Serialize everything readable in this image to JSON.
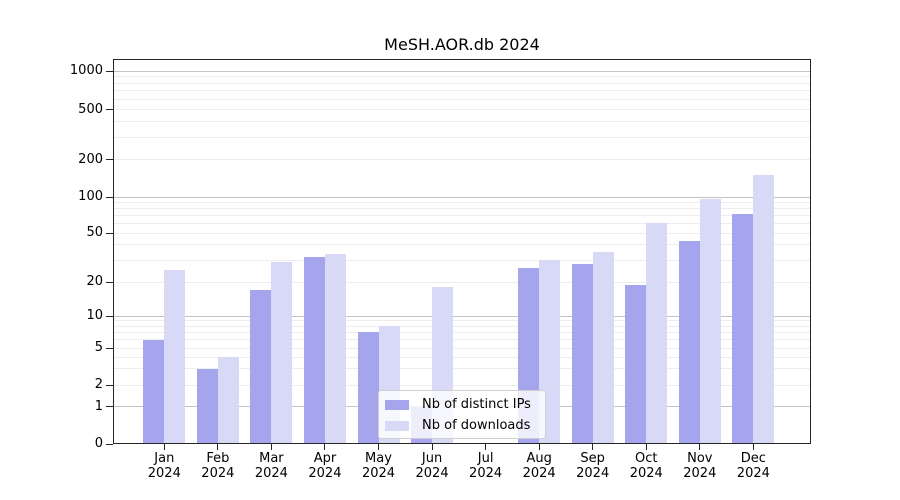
{
  "chart_data": {
    "type": "bar",
    "title": "MeSH.AOR.db 2024",
    "categories": [
      "Jan",
      "Feb",
      "Mar",
      "Apr",
      "May",
      "Jun",
      "Jul",
      "Aug",
      "Sep",
      "Oct",
      "Nov",
      "Dec"
    ],
    "year_label": "2024",
    "series": [
      {
        "name": "Nb of distinct IPs",
        "color": "#a5a5ee",
        "values": [
          6,
          3,
          17,
          32,
          7,
          1,
          0,
          26,
          28,
          19,
          43,
          72
        ]
      },
      {
        "name": "Nb of downloads",
        "color": "#d8d8f7",
        "values": [
          25,
          4,
          29,
          34,
          8,
          18,
          0,
          30,
          35,
          61,
          96,
          150
        ]
      }
    ],
    "y_axis": {
      "scale": "symlog",
      "tick_values": [
        0,
        1,
        2,
        5,
        10,
        20,
        50,
        100,
        200,
        500,
        1000
      ],
      "ylim": [
        0,
        1280
      ]
    },
    "grid": {
      "which": "both",
      "major_color": "#c3c3c3",
      "minor_color": "#ededed"
    },
    "legend": {
      "position": "lower center"
    }
  }
}
